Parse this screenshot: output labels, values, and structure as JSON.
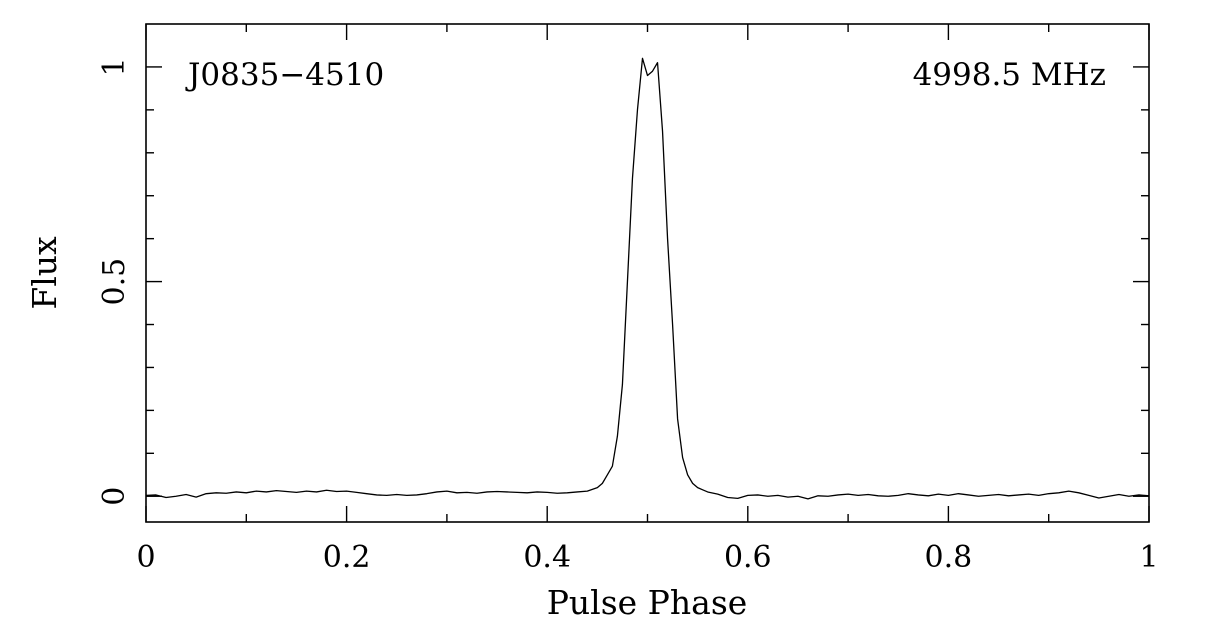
{
  "chart_data": {
    "type": "line",
    "title": "",
    "xlabel": "Pulse Phase",
    "ylabel": "Flux",
    "xlim": [
      0,
      1
    ],
    "ylim": [
      -0.06,
      1.1
    ],
    "xticks": [
      0,
      0.2,
      0.4,
      0.6,
      0.8,
      1
    ],
    "xtick_labels": [
      "0",
      "0.2",
      "0.4",
      "0.6",
      "0.8",
      "1"
    ],
    "yticks": [
      0,
      0.5,
      1
    ],
    "ytick_labels": [
      "0",
      "0.5",
      "1"
    ],
    "grid": false,
    "annotations": {
      "source": "J0835−4510",
      "frequency": "4998.5 MHz"
    },
    "series": [
      {
        "x": [
          0.0,
          0.01,
          0.02,
          0.03,
          0.04,
          0.05,
          0.06,
          0.07,
          0.08,
          0.09,
          0.1,
          0.11,
          0.12,
          0.13,
          0.14,
          0.15,
          0.16,
          0.17,
          0.18,
          0.19,
          0.2,
          0.21,
          0.22,
          0.23,
          0.24,
          0.25,
          0.26,
          0.27,
          0.28,
          0.29,
          0.3,
          0.31,
          0.32,
          0.33,
          0.34,
          0.35,
          0.36,
          0.37,
          0.38,
          0.39,
          0.4,
          0.41,
          0.42,
          0.43,
          0.44,
          0.45,
          0.455,
          0.46,
          0.465,
          0.47,
          0.475,
          0.48,
          0.485,
          0.49,
          0.495,
          0.5,
          0.505,
          0.51,
          0.515,
          0.52,
          0.525,
          0.53,
          0.535,
          0.54,
          0.545,
          0.55,
          0.555,
          0.56,
          0.57,
          0.58,
          0.59,
          0.6,
          0.61,
          0.62,
          0.63,
          0.64,
          0.65,
          0.66,
          0.67,
          0.68,
          0.69,
          0.7,
          0.71,
          0.72,
          0.73,
          0.74,
          0.75,
          0.76,
          0.77,
          0.78,
          0.79,
          0.8,
          0.81,
          0.82,
          0.83,
          0.84,
          0.85,
          0.86,
          0.87,
          0.88,
          0.89,
          0.9,
          0.91,
          0.92,
          0.93,
          0.94,
          0.95,
          0.96,
          0.97,
          0.98,
          0.99,
          1.0
        ],
        "y": [
          0.002,
          0.003,
          -0.003,
          0.0,
          0.004,
          -0.002,
          0.006,
          0.008,
          0.007,
          0.01,
          0.008,
          0.012,
          0.01,
          0.013,
          0.011,
          0.009,
          0.012,
          0.01,
          0.014,
          0.011,
          0.012,
          0.009,
          0.006,
          0.003,
          0.002,
          0.004,
          0.002,
          0.003,
          0.006,
          0.01,
          0.012,
          0.008,
          0.009,
          0.007,
          0.01,
          0.011,
          0.01,
          0.009,
          0.008,
          0.01,
          0.009,
          0.007,
          0.008,
          0.01,
          0.012,
          0.02,
          0.03,
          0.05,
          0.07,
          0.14,
          0.26,
          0.5,
          0.74,
          0.9,
          1.02,
          0.98,
          0.99,
          1.01,
          0.85,
          0.6,
          0.4,
          0.18,
          0.09,
          0.05,
          0.03,
          0.02,
          0.015,
          0.01,
          0.005,
          -0.003,
          -0.005,
          0.002,
          0.003,
          0.0,
          0.002,
          -0.002,
          0.0,
          -0.006,
          0.001,
          0.0,
          0.003,
          0.005,
          0.002,
          0.004,
          0.001,
          0.0,
          0.002,
          0.006,
          0.003,
          0.001,
          0.005,
          0.002,
          0.006,
          0.003,
          0.0,
          0.002,
          0.004,
          0.001,
          0.003,
          0.005,
          0.002,
          0.006,
          0.008,
          0.012,
          0.008,
          0.002,
          -0.004,
          0.0,
          0.004,
          0.0,
          0.003,
          0.001
        ]
      }
    ]
  }
}
